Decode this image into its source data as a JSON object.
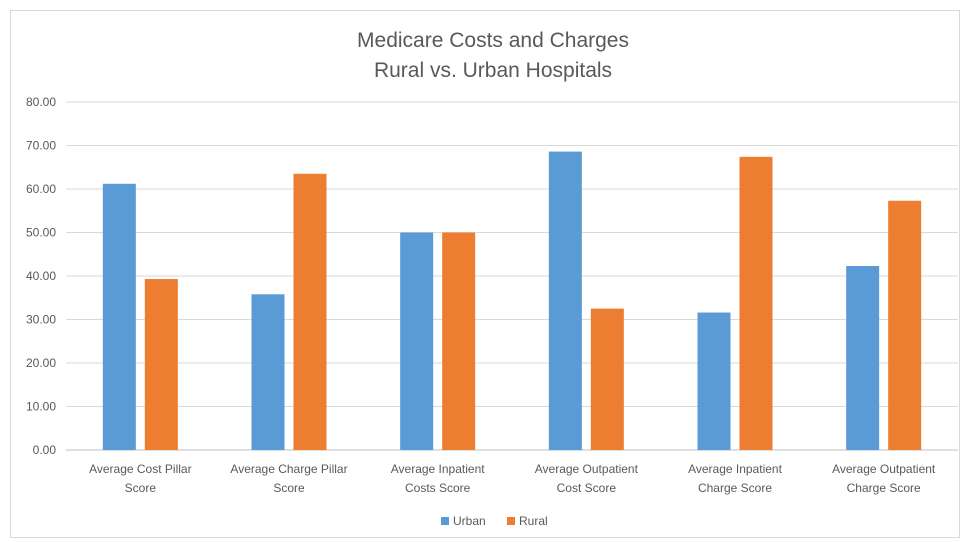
{
  "chart_data": {
    "type": "bar",
    "title": "Medicare Costs and Charges",
    "subtitle": "Rural vs. Urban Hospitals",
    "xlabel": "",
    "ylabel": "",
    "ylim": [
      0,
      80
    ],
    "yticks": [
      "0.00",
      "10.00",
      "20.00",
      "30.00",
      "40.00",
      "50.00",
      "60.00",
      "70.00",
      "80.00"
    ],
    "grid": true,
    "legend_position": "bottom",
    "categories": [
      [
        "Average Cost Pillar",
        "Score"
      ],
      [
        "Average Charge Pillar",
        "Score"
      ],
      [
        "Average Inpatient",
        "Costs Score"
      ],
      [
        "Average Outpatient",
        "Cost Score"
      ],
      [
        "Average Inpatient",
        "Charge Score"
      ],
      [
        "Average Outpatient",
        "Charge Score"
      ]
    ],
    "series": [
      {
        "name": "Urban",
        "color": "#5b9bd5",
        "values": [
          61.2,
          35.8,
          50.0,
          68.6,
          31.6,
          42.3
        ]
      },
      {
        "name": "Rural",
        "color": "#ed7d31",
        "values": [
          39.3,
          63.5,
          50.0,
          32.5,
          67.4,
          57.3
        ]
      }
    ]
  }
}
